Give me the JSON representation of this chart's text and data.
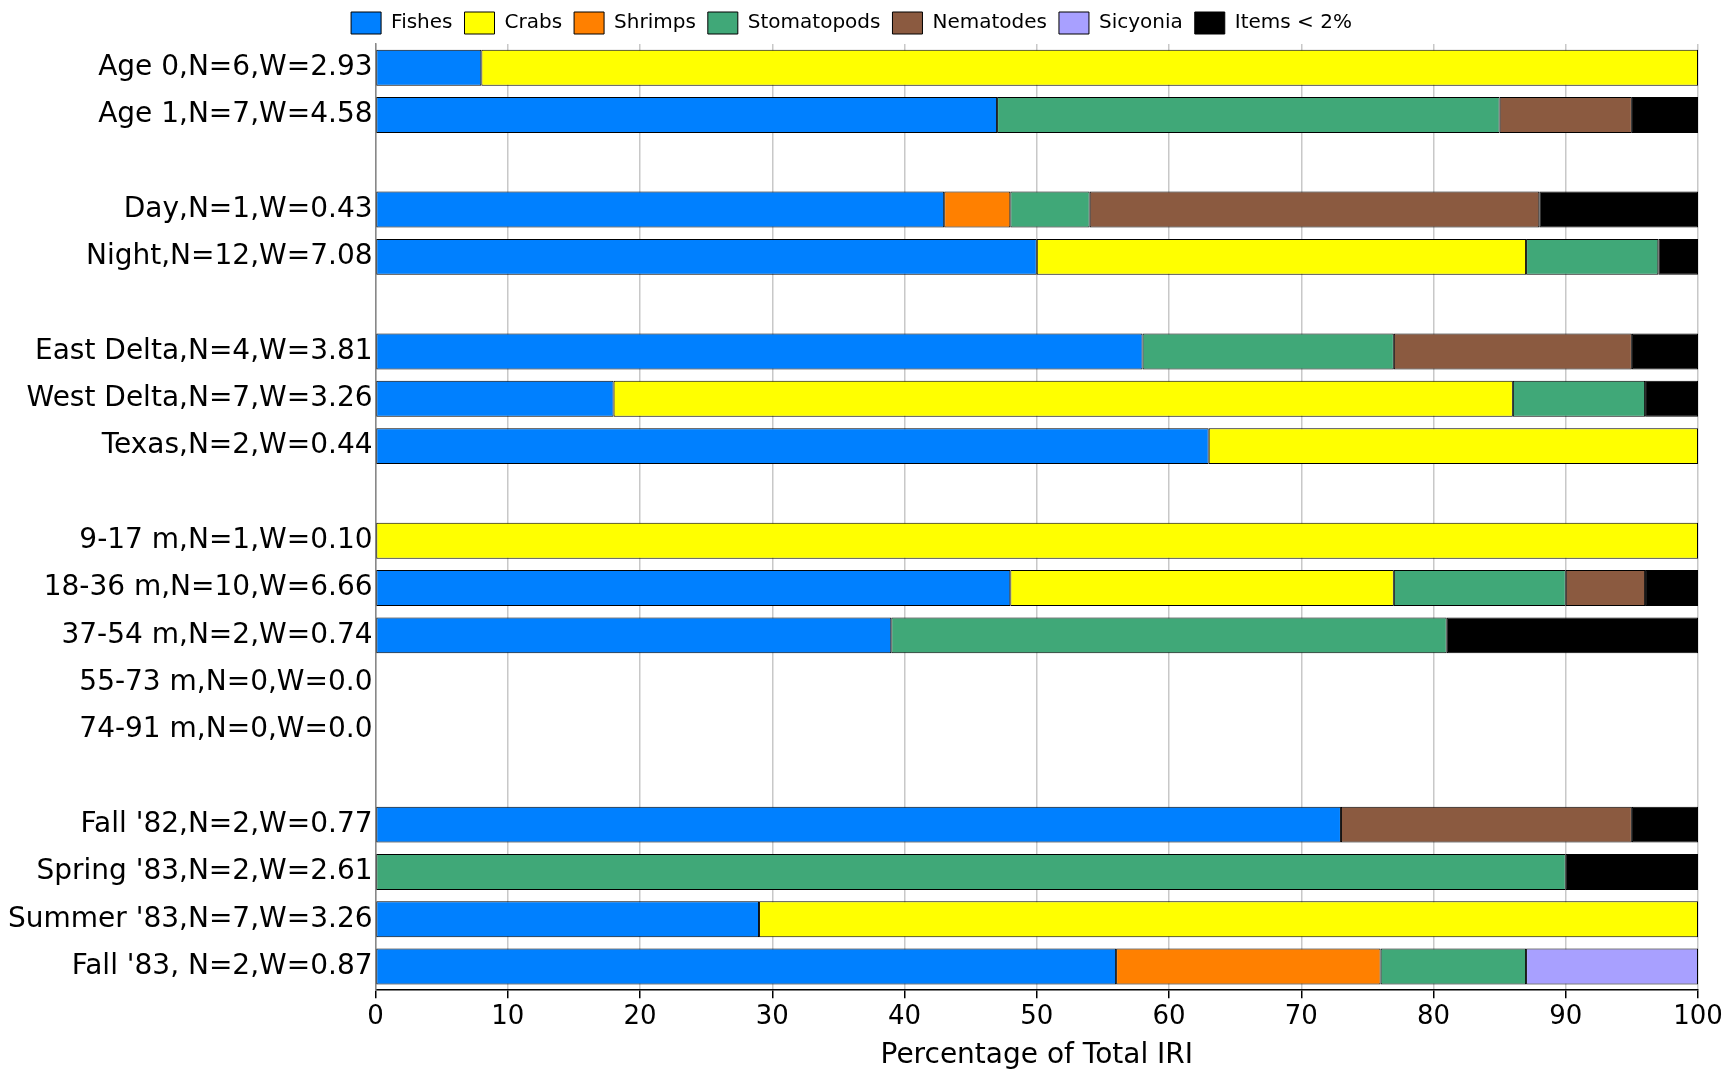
{
  "chart_data": {
    "type": "bar",
    "orientation": "horizontal",
    "stacked": true,
    "xlabel": "Percentage of Total IRI",
    "categories": [
      "Age 0,N=6,W=2.93",
      "Age 1,N=7,W=4.58",
      null,
      "Day,N=1,W=0.43",
      "Night,N=12,W=7.08",
      null,
      "East Delta,N=4,W=3.81",
      "West Delta,N=7,W=3.26",
      "Texas,N=2,W=0.44",
      null,
      "9-17 m,N=1,W=0.10",
      "18-36 m,N=10,W=6.66",
      "37-54 m,N=2,W=0.74",
      "55-73 m,N=0,W=0.0",
      "74-91 m,N=0,W=0.0",
      null,
      "Fall '82,N=2,W=0.77",
      "Spring '83,N=2,W=2.61",
      "Summer '83,N=7,W=3.26",
      "Fall '83, N=2,W=0.87"
    ],
    "series": [
      {
        "name": "Fishes",
        "color": "#0080ff",
        "values": [
          8,
          47,
          null,
          43,
          50,
          null,
          58,
          18,
          63,
          null,
          null,
          48,
          39,
          null,
          null,
          null,
          73,
          null,
          29,
          56
        ]
      },
      {
        "name": "Crabs",
        "color": "#ffff00",
        "values": [
          92,
          null,
          null,
          null,
          37,
          null,
          null,
          68,
          37,
          null,
          100,
          29,
          null,
          null,
          null,
          null,
          null,
          null,
          71,
          null
        ]
      },
      {
        "name": "Shrimps",
        "color": "#ff8000",
        "values": [
          null,
          null,
          null,
          5,
          null,
          null,
          null,
          null,
          null,
          null,
          null,
          null,
          null,
          null,
          null,
          null,
          null,
          null,
          null,
          20
        ]
      },
      {
        "name": "Stomatopods",
        "color": "#40a878",
        "values": [
          null,
          38,
          null,
          6,
          10,
          null,
          19,
          10,
          null,
          null,
          null,
          13,
          42,
          null,
          null,
          null,
          null,
          90,
          null,
          11
        ]
      },
      {
        "name": "Nematodes",
        "color": "#8b5a40",
        "values": [
          null,
          10,
          null,
          34,
          null,
          null,
          18,
          null,
          null,
          null,
          null,
          6,
          null,
          null,
          null,
          null,
          22,
          null,
          null,
          null
        ]
      },
      {
        "name": "Sicyonia",
        "color": "#a8a0ff",
        "values": [
          null,
          null,
          null,
          null,
          null,
          null,
          null,
          null,
          null,
          null,
          null,
          null,
          null,
          null,
          null,
          null,
          null,
          null,
          null,
          13
        ]
      },
      {
        "name": "Items < 2%",
        "color": "#000000",
        "values": [
          null,
          5,
          null,
          12,
          3,
          null,
          5,
          4,
          null,
          null,
          null,
          4,
          19,
          null,
          null,
          null,
          5,
          10,
          null,
          null
        ]
      }
    ],
    "xlim": [
      0,
      100
    ],
    "xticks": [
      0,
      10,
      20,
      30,
      40,
      50,
      60,
      70,
      80,
      90,
      100
    ],
    "grid": "x",
    "legend": "top"
  }
}
